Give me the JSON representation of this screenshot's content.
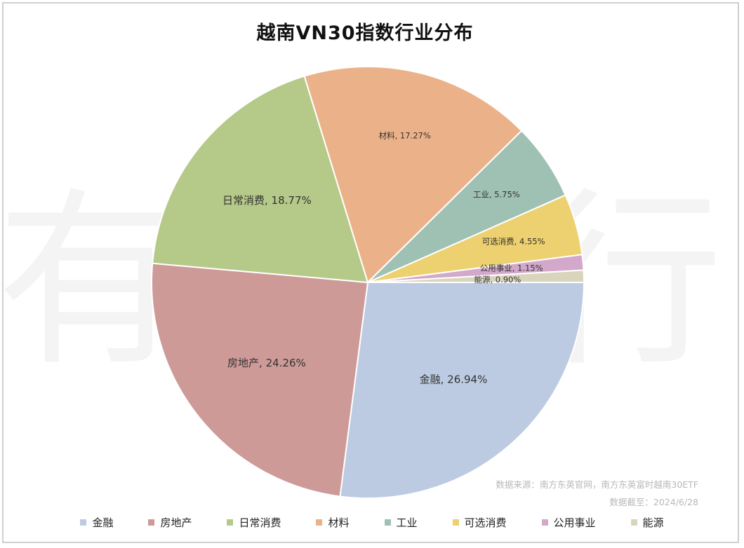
{
  "title": "越南VN30指数行业分布",
  "source": {
    "line1": "数据来源：南方东英官网，南方东英富时越南30ETF",
    "line2": "数据截至：2024/6/28"
  },
  "watermark": "有知有行",
  "chart_data": {
    "type": "pie",
    "title": "越南VN30指数行业分布",
    "legend_position": "bottom",
    "start": "clockwise from the positive x-axis",
    "slices": [
      {
        "label": "金融",
        "value": 26.94,
        "display": "金融, 26.94%",
        "color": "#bccbe2",
        "font_size": 15
      },
      {
        "label": "房地产",
        "value": 24.26,
        "display": "房地产, 24.26%",
        "color": "#cd9a98",
        "font_size": 15
      },
      {
        "label": "日常消费",
        "value": 18.77,
        "display": "日常消费, 18.77%",
        "color": "#b5c988",
        "font_size": 15
      },
      {
        "label": "材料",
        "value": 17.27,
        "display": "材料, 17.27%",
        "color": "#ebb28a",
        "font_size": 11.5
      },
      {
        "label": "工业",
        "value": 5.75,
        "display": "工业, 5.75%",
        "color": "#9fc1b4",
        "font_size": 11.5
      },
      {
        "label": "可选消费",
        "value": 4.55,
        "display": "可选消费, 4.55%",
        "color": "#edd06f",
        "font_size": 11.5
      },
      {
        "label": "公用事业",
        "value": 1.15,
        "display": "公用事业, 1.15%",
        "color": "#d3a8cb",
        "font_size": 11.5
      },
      {
        "label": "能源",
        "value": 0.9,
        "display": "能源, 0.90%",
        "color": "#d9d5bd",
        "font_size": 11.5
      }
    ]
  }
}
